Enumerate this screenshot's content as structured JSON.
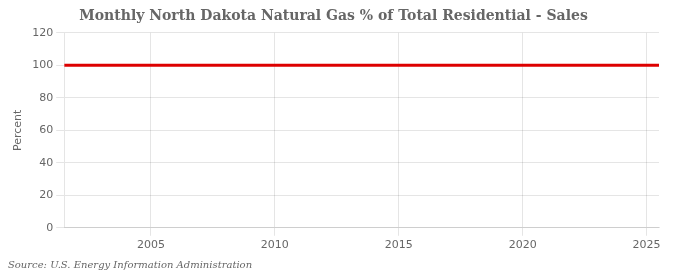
{
  "chart_data": {
    "type": "line",
    "title": "Monthly North Dakota Natural Gas % of Total Residential - Sales",
    "ylabel": "Percent",
    "source": "Source: U.S. Energy Information Administration",
    "x": [
      2001.5,
      2025.5
    ],
    "values": [
      100,
      100
    ],
    "color": "#dd0000",
    "xlim": [
      2001.5,
      2025.5
    ],
    "xticks": [
      2005,
      2010,
      2015,
      2020,
      2025
    ],
    "ylim": [
      0,
      120
    ],
    "yticks": [
      0,
      20,
      40,
      60,
      80,
      100,
      120
    ],
    "grid": true
  }
}
